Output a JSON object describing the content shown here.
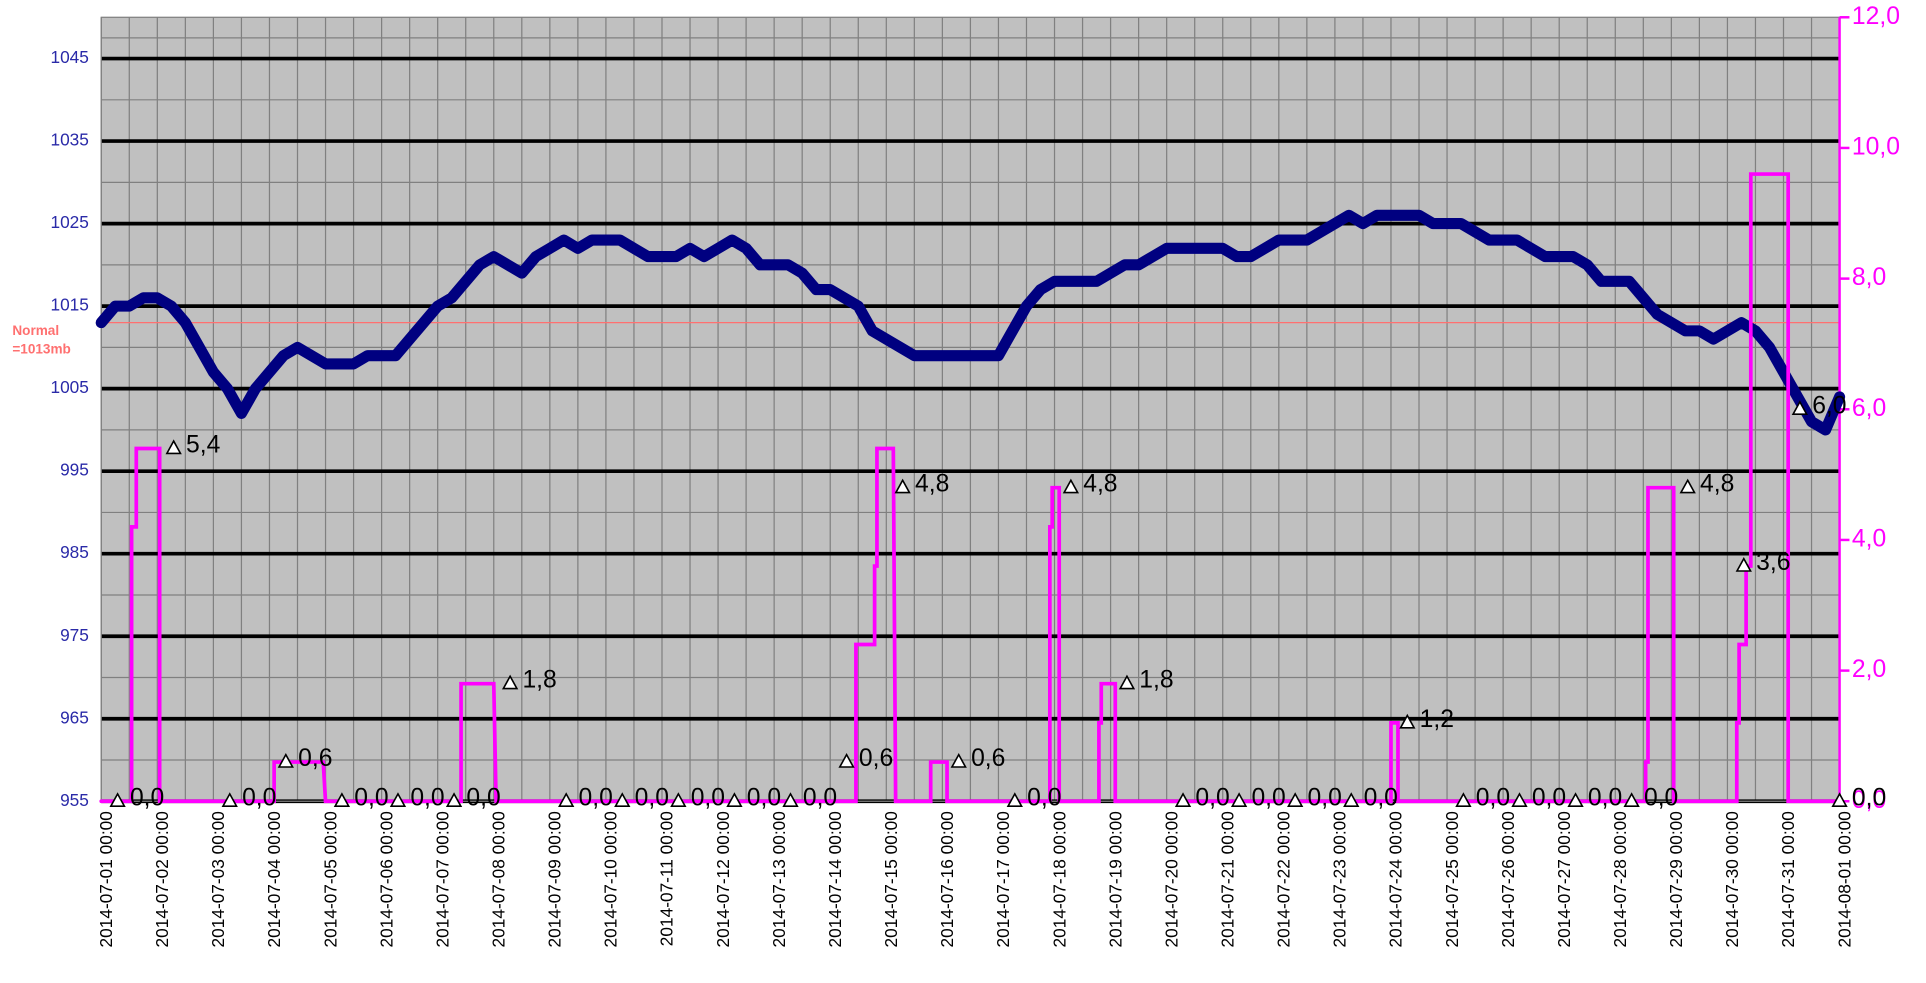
{
  "chart_data": {
    "type": "line",
    "xlim": [
      "2014-07-01 00:00",
      "2014-08-01 00:00"
    ],
    "xticks": [
      "2014-07-01 00:00",
      "2014-07-02 00:00",
      "2014-07-03 00:00",
      "2014-07-04 00:00",
      "2014-07-05 00:00",
      "2014-07-06 00:00",
      "2014-07-07 00:00",
      "2014-07-08 00:00",
      "2014-07-09 00:00",
      "2014-07-10 00:00",
      "2014-07-11 00:00",
      "2014-07-12 00:00",
      "2014-07-13 00:00",
      "2014-07-14 00:00",
      "2014-07-15 00:00",
      "2014-07-16 00:00",
      "2014-07-17 00:00",
      "2014-07-18 00:00",
      "2014-07-19 00:00",
      "2014-07-20 00:00",
      "2014-07-21 00:00",
      "2014-07-22 00:00",
      "2014-07-23 00:00",
      "2014-07-24 00:00",
      "2014-07-25 00:00",
      "2014-07-26 00:00",
      "2014-07-27 00:00",
      "2014-07-28 00:00",
      "2014-07-29 00:00",
      "2014-07-30 00:00",
      "2014-07-31 00:00",
      "2014-08-01 00:00"
    ],
    "ylim": [
      955,
      1050
    ],
    "yticks": [
      955,
      965,
      975,
      985,
      995,
      1005,
      1015,
      1025,
      1035,
      1045
    ],
    "y2lim": [
      0,
      12
    ],
    "y2ticks": [
      {
        "value": 0,
        "label": "0,0"
      },
      {
        "value": 2,
        "label": "2,0"
      },
      {
        "value": 4,
        "label": "4,0"
      },
      {
        "value": 6,
        "label": "6,0"
      },
      {
        "value": 8,
        "label": "8,0"
      },
      {
        "value": 10,
        "label": "10,0"
      },
      {
        "value": 12,
        "label": "12,0"
      }
    ],
    "grid": true,
    "reference_line": {
      "value": 1013,
      "label": [
        "Normal",
        "=1013mb"
      ],
      "color": "#ff7070"
    },
    "series": [
      {
        "color": "#000080",
        "x": [
          "2014-07-01 00:00",
          "2014-07-01 06:00",
          "2014-07-01 12:00",
          "2014-07-01 18:00",
          "2014-07-02 00:00",
          "2014-07-02 06:00",
          "2014-07-02 12:00",
          "2014-07-02 18:00",
          "2014-07-03 00:00",
          "2014-07-03 06:00",
          "2014-07-03 12:00",
          "2014-07-03 18:00",
          "2014-07-04 00:00",
          "2014-07-04 06:00",
          "2014-07-04 12:00",
          "2014-07-04 18:00",
          "2014-07-05 00:00",
          "2014-07-05 06:00",
          "2014-07-05 12:00",
          "2014-07-05 18:00",
          "2014-07-06 00:00",
          "2014-07-06 06:00",
          "2014-07-06 12:00",
          "2014-07-06 18:00",
          "2014-07-07 00:00",
          "2014-07-07 06:00",
          "2014-07-07 12:00",
          "2014-07-07 18:00",
          "2014-07-08 00:00",
          "2014-07-08 06:00",
          "2014-07-08 12:00",
          "2014-07-08 18:00",
          "2014-07-09 00:00",
          "2014-07-09 06:00",
          "2014-07-09 12:00",
          "2014-07-09 18:00",
          "2014-07-10 00:00",
          "2014-07-10 06:00",
          "2014-07-10 12:00",
          "2014-07-10 18:00",
          "2014-07-11 00:00",
          "2014-07-11 06:00",
          "2014-07-11 12:00",
          "2014-07-11 18:00",
          "2014-07-12 00:00",
          "2014-07-12 06:00",
          "2014-07-12 12:00",
          "2014-07-12 18:00",
          "2014-07-13 00:00",
          "2014-07-13 06:00",
          "2014-07-13 12:00",
          "2014-07-13 18:00",
          "2014-07-14 00:00",
          "2014-07-14 06:00",
          "2014-07-14 12:00",
          "2014-07-14 18:00",
          "2014-07-15 00:00",
          "2014-07-15 06:00",
          "2014-07-15 12:00",
          "2014-07-15 18:00",
          "2014-07-16 00:00",
          "2014-07-16 06:00",
          "2014-07-16 12:00",
          "2014-07-16 18:00",
          "2014-07-17 00:00",
          "2014-07-17 06:00",
          "2014-07-17 12:00",
          "2014-07-17 18:00",
          "2014-07-18 00:00",
          "2014-07-18 06:00",
          "2014-07-18 12:00",
          "2014-07-18 18:00",
          "2014-07-19 00:00",
          "2014-07-19 06:00",
          "2014-07-19 12:00",
          "2014-07-19 18:00",
          "2014-07-20 00:00",
          "2014-07-20 06:00",
          "2014-07-20 12:00",
          "2014-07-20 18:00",
          "2014-07-21 00:00",
          "2014-07-21 06:00",
          "2014-07-21 12:00",
          "2014-07-21 18:00",
          "2014-07-22 00:00",
          "2014-07-22 06:00",
          "2014-07-22 12:00",
          "2014-07-22 18:00",
          "2014-07-23 00:00",
          "2014-07-23 06:00",
          "2014-07-23 12:00",
          "2014-07-23 18:00",
          "2014-07-24 00:00",
          "2014-07-24 06:00",
          "2014-07-24 12:00",
          "2014-07-24 18:00",
          "2014-07-25 00:00",
          "2014-07-25 06:00",
          "2014-07-25 12:00",
          "2014-07-25 18:00",
          "2014-07-26 00:00",
          "2014-07-26 06:00",
          "2014-07-26 12:00",
          "2014-07-26 18:00",
          "2014-07-27 00:00",
          "2014-07-27 06:00",
          "2014-07-27 12:00",
          "2014-07-27 18:00",
          "2014-07-28 00:00",
          "2014-07-28 06:00",
          "2014-07-28 12:00",
          "2014-07-28 18:00",
          "2014-07-29 00:00",
          "2014-07-29 06:00",
          "2014-07-29 12:00",
          "2014-07-29 18:00",
          "2014-07-30 00:00",
          "2014-07-30 06:00",
          "2014-07-30 12:00",
          "2014-07-30 18:00",
          "2014-07-31 00:00",
          "2014-07-31 06:00",
          "2014-07-31 12:00",
          "2014-07-31 18:00",
          "2014-08-01 00:00"
        ],
        "values": [
          1013,
          1015,
          1015,
          1016,
          1016,
          1015,
          1013,
          1010,
          1007,
          1005,
          1002,
          1005,
          1007,
          1009,
          1010,
          1009,
          1008,
          1008,
          1008,
          1009,
          1009,
          1009,
          1011,
          1013,
          1015,
          1016,
          1018,
          1020,
          1021,
          1020,
          1019,
          1021,
          1022,
          1023,
          1022,
          1023,
          1023,
          1023,
          1022,
          1021,
          1021,
          1021,
          1022,
          1021,
          1022,
          1023,
          1022,
          1020,
          1020,
          1020,
          1019,
          1017,
          1017,
          1016,
          1015,
          1012,
          1011,
          1010,
          1009,
          1009,
          1009,
          1009,
          1009,
          1009,
          1009,
          1012,
          1015,
          1017,
          1018,
          1018,
          1018,
          1018,
          1019,
          1020,
          1020,
          1021,
          1022,
          1022,
          1022,
          1022,
          1022,
          1021,
          1021,
          1022,
          1023,
          1023,
          1023,
          1024,
          1025,
          1026,
          1025,
          1026,
          1026,
          1026,
          1026,
          1025,
          1025,
          1025,
          1024,
          1023,
          1023,
          1023,
          1022,
          1021,
          1021,
          1021,
          1020,
          1018,
          1018,
          1018,
          1016,
          1014,
          1013,
          1012,
          1012,
          1011,
          1012,
          1013,
          1012,
          1010,
          1007,
          1004,
          1001,
          1000,
          1004
        ]
      },
      {
        "color": "#ff00ff",
        "axis": "y2",
        "x": [
          "2014-07-01 00:00",
          "2014-07-01 13:00",
          "2014-07-01 13:00",
          "2014-07-01 15:00",
          "2014-07-01 15:00",
          "2014-07-02 01:00",
          "2014-07-02 01:00",
          "2014-07-04 02:00",
          "2014-07-04 02:00",
          "2014-07-04 23:00",
          "2014-07-05 00:00",
          "2014-07-07 10:00",
          "2014-07-07 10:00",
          "2014-07-08 00:00",
          "2014-07-08 01:00",
          "2014-07-14 11:00",
          "2014-07-14 11:00",
          "2014-07-14 19:00",
          "2014-07-14 19:00",
          "2014-07-14 20:00",
          "2014-07-14 20:00",
          "2014-07-15 03:00",
          "2014-07-15 04:00",
          "2014-07-15 19:00",
          "2014-07-15 19:00",
          "2014-07-16 02:00",
          "2014-07-16 02:00",
          "2014-07-17 22:00",
          "2014-07-17 22:00",
          "2014-07-17 23:00",
          "2014-07-17 23:00",
          "2014-07-18 02:00",
          "2014-07-18 02:00",
          "2014-07-18 19:00",
          "2014-07-18 19:00",
          "2014-07-18 20:00",
          "2014-07-18 20:00",
          "2014-07-19 02:00",
          "2014-07-19 02:00",
          "2014-07-24 00:00",
          "2014-07-24 00:00",
          "2014-07-24 03:00",
          "2014-07-24 03:00",
          "2014-07-28 13:00",
          "2014-07-28 13:00",
          "2014-07-28 14:00",
          "2014-07-28 14:00",
          "2014-07-29 01:00",
          "2014-07-29 01:00",
          "2014-07-30 04:00",
          "2014-07-30 04:00",
          "2014-07-30 05:00",
          "2014-07-30 05:00",
          "2014-07-30 08:00",
          "2014-07-30 08:00",
          "2014-07-30 10:00",
          "2014-07-30 10:00",
          "2014-07-31 02:00",
          "2014-07-31 02:00",
          "2014-08-01 00:00"
        ],
        "values": [
          0,
          0,
          4.2,
          4.2,
          5.4,
          5.4,
          0,
          0,
          0.6,
          0.6,
          0,
          0,
          1.8,
          1.8,
          0,
          0,
          2.4,
          2.4,
          3.6,
          3.6,
          5.4,
          5.4,
          0,
          0,
          0.6,
          0.6,
          0,
          0,
          4.2,
          4.2,
          4.8,
          4.8,
          0,
          0,
          1.2,
          1.2,
          1.8,
          1.8,
          0,
          0,
          1.2,
          1.2,
          0,
          0,
          0.6,
          0.6,
          4.8,
          4.8,
          0,
          0,
          1.2,
          1.2,
          2.4,
          2.4,
          3.6,
          3.6,
          9.6,
          9.6,
          0,
          0
        ]
      },
      {
        "color": "#000000",
        "axis": "y2",
        "marker": "triangle",
        "x": [
          "2014-07-01 07:00",
          "2014-07-02 07:00",
          "2014-07-03 07:00",
          "2014-07-04 07:00",
          "2014-07-05 07:00",
          "2014-07-06 07:00",
          "2014-07-07 07:00",
          "2014-07-08 07:00",
          "2014-07-09 07:00",
          "2014-07-10 07:00",
          "2014-07-11 07:00",
          "2014-07-12 07:00",
          "2014-07-13 07:00",
          "2014-07-14 07:00",
          "2014-07-15 07:00",
          "2014-07-16 07:00",
          "2014-07-17 07:00",
          "2014-07-18 07:00",
          "2014-07-19 07:00",
          "2014-07-20 07:00",
          "2014-07-21 07:00",
          "2014-07-22 07:00",
          "2014-07-23 07:00",
          "2014-07-24 07:00",
          "2014-07-25 07:00",
          "2014-07-26 07:00",
          "2014-07-27 07:00",
          "2014-07-28 07:00",
          "2014-07-29 07:00",
          "2014-07-30 07:00",
          "2014-07-31 07:00",
          "2014-08-01 00:00"
        ],
        "values": [
          0,
          5.4,
          0,
          0.6,
          0,
          0,
          0,
          1.8,
          0,
          0,
          0,
          0,
          0,
          0.6,
          4.8,
          0.6,
          0,
          4.8,
          1.8,
          0,
          0,
          0,
          0,
          1.2,
          0,
          0,
          0,
          0,
          4.8,
          3.6,
          6.0,
          0
        ],
        "value_labels": [
          "0,0",
          "5,4",
          "0,0",
          "0,6",
          "0,0",
          "0,0",
          "0,0",
          "1,8",
          "0,0",
          "0,0",
          "0,0",
          "0,0",
          "0,0",
          "0,6",
          "4,8",
          "0,6",
          "0,0",
          "4,8",
          "1,8",
          "0,0",
          "0,0",
          "0,0",
          "0,0",
          "1,2",
          "0,0",
          "0,0",
          "0,0",
          "0,0",
          "4,8",
          "3,6",
          "6,0",
          "0,0"
        ]
      }
    ]
  }
}
